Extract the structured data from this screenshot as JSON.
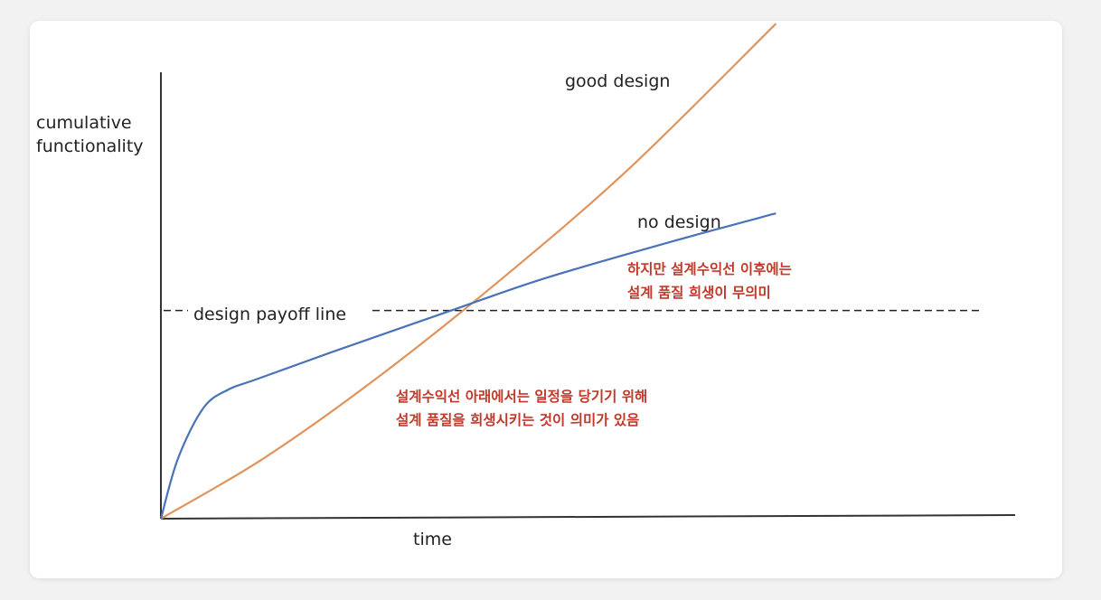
{
  "chart_data": {
    "type": "line",
    "xlabel": "time",
    "ylabel": [
      "cumulative",
      "functionality"
    ],
    "series": [
      {
        "name": "good design",
        "color": "#e0935a",
        "points": [
          [
            0,
            0
          ],
          [
            0.12,
            0.13
          ],
          [
            0.25,
            0.3
          ],
          [
            0.4,
            0.52
          ],
          [
            0.55,
            0.76
          ],
          [
            0.72,
            1.07
          ]
        ]
      },
      {
        "name": "no design",
        "color": "#4a72b8",
        "points": [
          [
            0,
            0
          ],
          [
            0.02,
            0.13
          ],
          [
            0.05,
            0.24
          ],
          [
            0.08,
            0.28
          ],
          [
            0.11,
            0.3
          ],
          [
            0.2,
            0.36
          ],
          [
            0.34,
            0.45
          ],
          [
            0.45,
            0.52
          ],
          [
            0.6,
            0.6
          ],
          [
            0.72,
            0.66
          ]
        ]
      }
    ],
    "reference_lines": [
      {
        "name": "design payoff line",
        "y": 0.45,
        "style": "dashed"
      }
    ],
    "annotations": [
      {
        "lines": [
          "하지만 설계수익선 이후에는",
          "설계 품질 희생이 무의미"
        ],
        "color": "#c0392b"
      },
      {
        "lines": [
          "설계수익선 아래에서는 일정을 당기기 위해",
          "설계 품질을 희생시키는 것이 의미가 있음"
        ],
        "color": "#c0392b"
      }
    ],
    "axis_color": "#333333"
  }
}
